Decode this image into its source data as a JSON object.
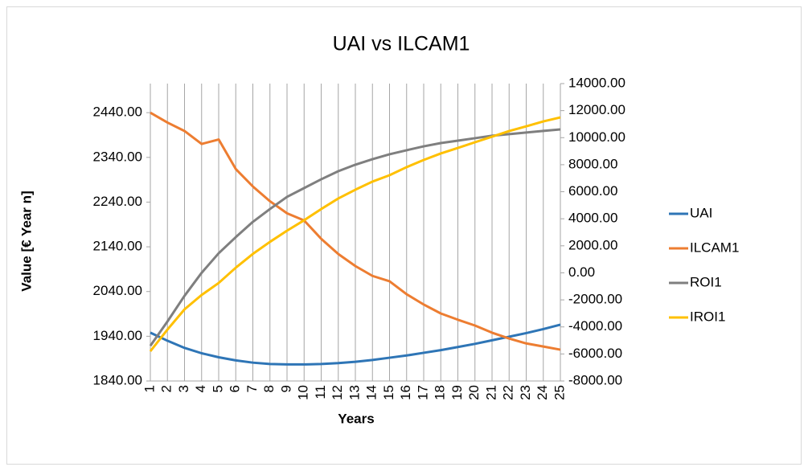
{
  "chart_data": {
    "type": "line",
    "title": "UAI vs ILCAM1",
    "xlabel": "Years",
    "ylabel": "Value [€ Year n]",
    "categories": [
      1,
      2,
      3,
      4,
      5,
      6,
      7,
      8,
      9,
      10,
      11,
      12,
      13,
      14,
      15,
      16,
      17,
      18,
      19,
      20,
      21,
      22,
      23,
      24,
      25
    ],
    "ylim": [
      1840,
      2505
    ],
    "yticks": [
      {
        "value": 1840,
        "label": "1840.00"
      },
      {
        "value": 1940,
        "label": "1940.00"
      },
      {
        "value": 2040,
        "label": "2040.00"
      },
      {
        "value": 2140,
        "label": "2140.00"
      },
      {
        "value": 2240,
        "label": "2240.00"
      },
      {
        "value": 2340,
        "label": "2340.00"
      },
      {
        "value": 2440,
        "label": "2440.00"
      }
    ],
    "y2lim": [
      -8000,
      14000
    ],
    "y2ticks": [
      {
        "value": -8000,
        "label": "-8000.00"
      },
      {
        "value": -6000,
        "label": "-6000.00"
      },
      {
        "value": -4000,
        "label": "-4000.00"
      },
      {
        "value": -2000,
        "label": "-2000.00"
      },
      {
        "value": 0,
        "label": "0.00"
      },
      {
        "value": 2000,
        "label": "2000.00"
      },
      {
        "value": 4000,
        "label": "4000.00"
      },
      {
        "value": 6000,
        "label": "6000.00"
      },
      {
        "value": 8000,
        "label": "8000.00"
      },
      {
        "value": 10000,
        "label": "10000.00"
      },
      {
        "value": 12000,
        "label": "12000.00"
      },
      {
        "value": 14000,
        "label": "14000.00"
      }
    ],
    "grid": "x",
    "legend": "right",
    "series": [
      {
        "name": "UAI",
        "color": "#2e75b6",
        "values": [
          1948,
          1930,
          1914,
          1902,
          1893,
          1886,
          1881,
          1878,
          1877,
          1877,
          1878,
          1880,
          1883,
          1887,
          1892,
          1897,
          1903,
          1909,
          1916,
          1923,
          1931,
          1939,
          1947,
          1956,
          1966
        ]
      },
      {
        "name": "ILCAM1",
        "color": "#ed7d31",
        "values": [
          2440,
          2418,
          2399,
          2370,
          2380,
          2314,
          2275,
          2242,
          2215,
          2199,
          2158,
          2124,
          2097,
          2075,
          2063,
          2034,
          2011,
          1991,
          1977,
          1964,
          1948,
          1935,
          1924,
          1917,
          1910
        ]
      },
      {
        "name": "ROI1",
        "color": "#7f7f7f",
        "axis": "y2",
        "values": [
          -5400,
          -3600,
          -1700,
          0,
          1450,
          2640,
          3770,
          4720,
          5620,
          6270,
          6920,
          7520,
          8000,
          8410,
          8770,
          9070,
          9360,
          9600,
          9780,
          9960,
          10140,
          10260,
          10380,
          10500,
          10610
        ]
      },
      {
        "name": "IROI1",
        "color": "#ffc000",
        "axis": "y2",
        "values": [
          -5800,
          -4200,
          -2700,
          -1640,
          -750,
          380,
          1400,
          2290,
          3120,
          3890,
          4720,
          5500,
          6150,
          6750,
          7220,
          7820,
          8350,
          8830,
          9240,
          9660,
          10070,
          10490,
          10840,
          11200,
          11500
        ]
      }
    ]
  }
}
